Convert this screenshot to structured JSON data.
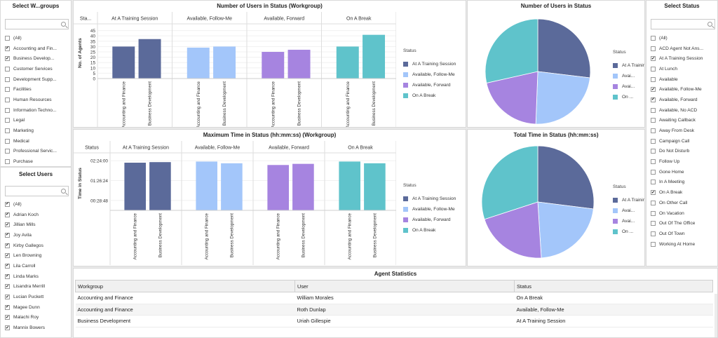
{
  "workgroups_panel": {
    "title": "Select W...groups",
    "items": [
      {
        "label": "(All)",
        "checked": false
      },
      {
        "label": "Accounting and Fin...",
        "checked": true
      },
      {
        "label": "Business Develop...",
        "checked": true
      },
      {
        "label": "Customer Services",
        "checked": false
      },
      {
        "label": "Development Supp...",
        "checked": false
      },
      {
        "label": "Facilities",
        "checked": false
      },
      {
        "label": "Human Resources",
        "checked": false
      },
      {
        "label": "Information Techno...",
        "checked": false
      },
      {
        "label": "Legal",
        "checked": false
      },
      {
        "label": "Marketing",
        "checked": false
      },
      {
        "label": "Medical",
        "checked": false
      },
      {
        "label": "Professional Servic...",
        "checked": false
      },
      {
        "label": "Purchase",
        "checked": false
      }
    ]
  },
  "users_panel": {
    "title": "Select Users",
    "items": [
      {
        "label": "(All)",
        "checked": true
      },
      {
        "label": "Adrian Koch",
        "checked": true
      },
      {
        "label": "Jillian Mills",
        "checked": true
      },
      {
        "label": "Joy Avila",
        "checked": true
      },
      {
        "label": "Kirby Gallegos",
        "checked": true
      },
      {
        "label": "Len Browning",
        "checked": true
      },
      {
        "label": "Lila Carroll",
        "checked": true
      },
      {
        "label": "Linda Marks",
        "checked": true
      },
      {
        "label": "Lisandra Merrill",
        "checked": true
      },
      {
        "label": "Lucian Puckett",
        "checked": true
      },
      {
        "label": "Magee Dunn",
        "checked": true
      },
      {
        "label": "Malachi Roy",
        "checked": true
      },
      {
        "label": "Mannix Bowers",
        "checked": true
      }
    ]
  },
  "status_panel": {
    "title": "Select Status",
    "items": [
      {
        "label": "(All)",
        "checked": false
      },
      {
        "label": "ACD Agent Not Ans...",
        "checked": false
      },
      {
        "label": "At A Training Session",
        "checked": true
      },
      {
        "label": "At Lunch",
        "checked": false
      },
      {
        "label": "Available",
        "checked": false
      },
      {
        "label": "Available, Follow-Me",
        "checked": true
      },
      {
        "label": "Available, Forward",
        "checked": true
      },
      {
        "label": "Available, No ACD",
        "checked": false
      },
      {
        "label": "Awaiting Callback",
        "checked": false
      },
      {
        "label": "Away From Desk",
        "checked": false
      },
      {
        "label": "Campaign Call",
        "checked": false
      },
      {
        "label": "Do Not Disturb",
        "checked": false
      },
      {
        "label": "Follow Up",
        "checked": false
      },
      {
        "label": "Gone Home",
        "checked": false
      },
      {
        "label": "In A Meeting",
        "checked": false
      },
      {
        "label": "On A Break",
        "checked": true
      },
      {
        "label": "On Other Call",
        "checked": false
      },
      {
        "label": "On Vacation",
        "checked": false
      },
      {
        "label": "Out Of The Office",
        "checked": false
      },
      {
        "label": "Out Of Town",
        "checked": false
      },
      {
        "label": "Working At Home",
        "checked": false
      }
    ]
  },
  "colors": {
    "training": "#5b6a9a",
    "followme": "#a3c6fa",
    "forward": "#a684e0",
    "break": "#5fc3cb"
  },
  "legend": {
    "title": "Status",
    "items": [
      "At A Training Session",
      "Available, Follow-Me",
      "Available, Forward",
      "On A Break"
    ],
    "pie_items": [
      "At A Training Session",
      "Avai...",
      "Avai...",
      "On ..."
    ]
  },
  "chart_data": [
    {
      "type": "bar",
      "title": "Number of Users in Status (Workgroup)",
      "header_label": "Sta...",
      "ylabel": "No. of Agents",
      "yticks": [
        "45",
        "40",
        "35",
        "30",
        "25",
        "20",
        "15",
        "10",
        "5",
        "0"
      ],
      "ylim": [
        0,
        48
      ],
      "panels": [
        "At A Training Session",
        "Available, Follow-Me",
        "Available, Forward",
        "On A Break"
      ],
      "categories": [
        "Accounting and Finance",
        "Business Development"
      ],
      "values": [
        [
          30,
          37
        ],
        [
          29,
          30
        ],
        [
          25,
          27
        ],
        [
          30,
          41
        ]
      ]
    },
    {
      "type": "bar",
      "title": "Maximum Time in Status (hh:mm:ss) (Workgroup)",
      "header_label": "Status",
      "ylabel": "Time in Status",
      "yticks": [
        "02:24:00",
        "01:26:24",
        "00:28:48"
      ],
      "ytick_values": [
        8640,
        5184,
        1728
      ],
      "ylim": [
        0,
        9400
      ],
      "panels": [
        "At A Training Session",
        "Available, Follow-Me",
        "Available, Forward",
        "On A Break"
      ],
      "categories": [
        "Accounting and Finance",
        "Business Development"
      ],
      "values": [
        [
          8300,
          8400
        ],
        [
          8500,
          8200
        ],
        [
          7900,
          8100
        ],
        [
          8500,
          8200
        ]
      ]
    },
    {
      "type": "pie",
      "title": "Number of Users in Status",
      "categories": [
        "At A Training Session",
        "Available, Follow-Me",
        "Available, Forward",
        "On A Break"
      ],
      "values": [
        67,
        59,
        52,
        71
      ]
    },
    {
      "type": "pie",
      "title": "Total Time in Status (hh:mm:ss)",
      "categories": [
        "At A Training Session",
        "Available, Follow-Me",
        "Available, Forward",
        "On A Break"
      ],
      "values": [
        27,
        22,
        21,
        30
      ]
    }
  ],
  "agent_table": {
    "title": "Agent Statistics",
    "columns": [
      "Workgroup",
      "User",
      "Status"
    ],
    "rows": [
      [
        "Accounting and Finance",
        "William Morales",
        "On A Break"
      ],
      [
        "Accounting and Finance",
        "Roth Dunlap",
        "Available, Follow-Me"
      ],
      [
        "Business Development",
        "Uriah Gillespie",
        "At A Training Session"
      ]
    ]
  }
}
